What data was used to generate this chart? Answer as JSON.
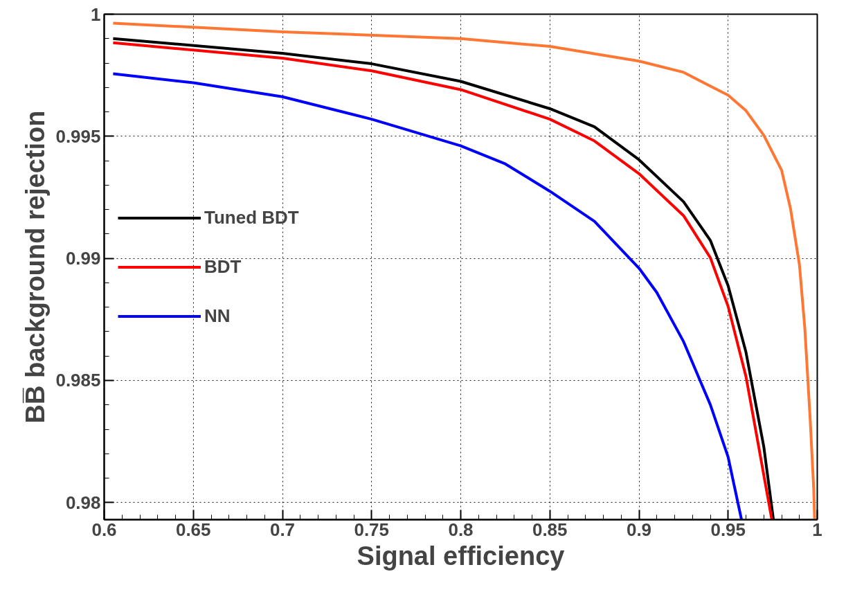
{
  "chart_data": {
    "type": "line",
    "xlabel": "Signal efficiency",
    "ylabel": "BB̅ background rejection",
    "xlim": [
      0.6,
      1
    ],
    "ylim": [
      0.9793,
      1
    ],
    "xticks": [
      0.6,
      0.65,
      0.7,
      0.75,
      0.8,
      0.85,
      0.9,
      0.95,
      1
    ],
    "yticks": [
      0.98,
      0.985,
      0.99,
      0.995,
      1
    ],
    "grid": true,
    "legend": "left",
    "line_style": "solid",
    "series": [
      {
        "color": "#ff7733",
        "x": [
          0.605,
          0.7,
          0.8,
          0.85,
          0.9,
          0.925,
          0.95,
          0.96,
          0.97,
          0.98,
          0.985,
          0.99,
          0.993,
          0.996,
          0.998,
          0.9985
        ],
        "values": [
          0.99963,
          0.99928,
          0.999,
          0.99868,
          0.99808,
          0.99762,
          0.99668,
          0.99605,
          0.99504,
          0.99361,
          0.99203,
          0.98974,
          0.98716,
          0.98344,
          0.98057,
          0.9793
        ]
      },
      {
        "name": "Tuned BDT",
        "color": "#000000",
        "x": [
          0.605,
          0.7,
          0.75,
          0.8,
          0.85,
          0.875,
          0.9,
          0.925,
          0.94,
          0.95,
          0.96,
          0.97,
          0.9754
        ],
        "values": [
          0.999,
          0.9984,
          0.99797,
          0.99725,
          0.99613,
          0.99539,
          0.99404,
          0.99232,
          0.99074,
          0.98888,
          0.98616,
          0.98229,
          0.9793
        ]
      },
      {
        "name": "BDT",
        "color": "#ff0000",
        "x": [
          0.605,
          0.7,
          0.75,
          0.8,
          0.85,
          0.875,
          0.9,
          0.925,
          0.94,
          0.95,
          0.96,
          0.965,
          0.9745
        ],
        "values": [
          0.99883,
          0.9982,
          0.99768,
          0.99691,
          0.9957,
          0.99481,
          0.99347,
          0.99175,
          0.99003,
          0.98803,
          0.98516,
          0.98315,
          0.9793
        ]
      },
      {
        "name": "NN",
        "color": "#0000ff",
        "x": [
          0.605,
          0.65,
          0.7,
          0.75,
          0.8,
          0.825,
          0.85,
          0.875,
          0.9,
          0.91,
          0.925,
          0.94,
          0.95,
          0.9575
        ],
        "values": [
          0.99756,
          0.99719,
          0.99662,
          0.9957,
          0.99461,
          0.99387,
          0.99275,
          0.99152,
          0.9896,
          0.9886,
          0.98659,
          0.98401,
          0.98186,
          0.9793
        ]
      }
    ]
  }
}
